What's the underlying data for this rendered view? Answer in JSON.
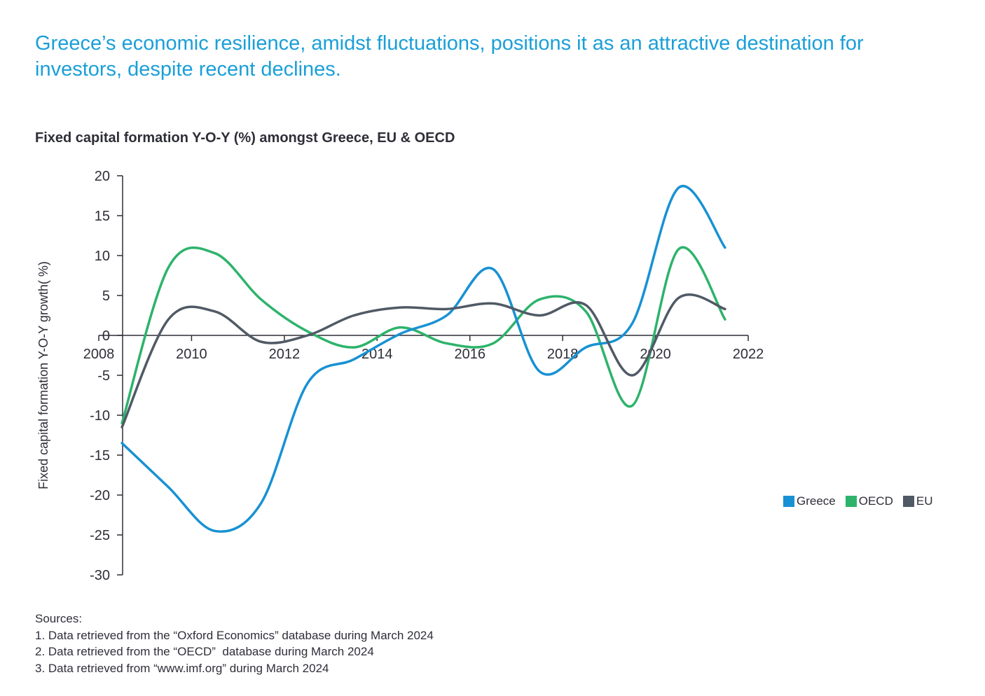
{
  "headline": "Greece’s economic resilience, amidst fluctuations, positions it as an attractive destination for investors, despite recent declines.",
  "chart_data": {
    "type": "line",
    "title": "Fixed capital formation Y-O-Y (%) amongst Greece, EU & OECD",
    "ylabel": "Fixed capital formation Y-O-Y growth( %)",
    "xlabel": "",
    "xlim": [
      2008,
      2022
    ],
    "ylim": [
      -30,
      20
    ],
    "x_ticks": [
      "2008",
      "2010",
      "2012",
      "2014",
      "2016",
      "2018",
      "2020",
      "2022"
    ],
    "y_ticks": [
      "20",
      "15",
      "10",
      "5",
      "0",
      "-5",
      "-10",
      "-15",
      "-20",
      "-25",
      "-30"
    ],
    "x": [
      2008.5,
      2009.5,
      2010.5,
      2011.5,
      2012.5,
      2013.5,
      2014.5,
      2015.5,
      2016.5,
      2017.5,
      2018.5,
      2019.5,
      2020.5,
      2021.5
    ],
    "series": [
      {
        "name": "Greece",
        "color": "#1791d3",
        "values": [
          -13.5,
          -19.0,
          -24.5,
          -21.0,
          -6.0,
          -3.0,
          0.2,
          2.5,
          8.3,
          -4.5,
          -1.5,
          1.5,
          18.5,
          11.0
        ]
      },
      {
        "name": "OECD",
        "color": "#2db36b",
        "values": [
          -11.0,
          8.5,
          10.3,
          4.5,
          0.5,
          -1.5,
          1.0,
          -1.0,
          -1.0,
          4.5,
          3.0,
          -8.8,
          10.8,
          2.0
        ]
      },
      {
        "name": "EU",
        "color": "#505a66",
        "values": [
          -11.5,
          2.0,
          3.0,
          -0.8,
          0.0,
          2.5,
          3.5,
          3.3,
          4.0,
          2.5,
          3.8,
          -5.0,
          4.7,
          3.3
        ]
      }
    ],
    "legend_position": "right",
    "grid": false
  },
  "sources": [
    "Sources:",
    "1. Data retrieved from the “Oxford Economics” database during March 2024",
    "2. Data retrieved from the “OECD”  database during March 2024",
    "3. Data retrieved from “www.imf.org” during March 2024"
  ]
}
